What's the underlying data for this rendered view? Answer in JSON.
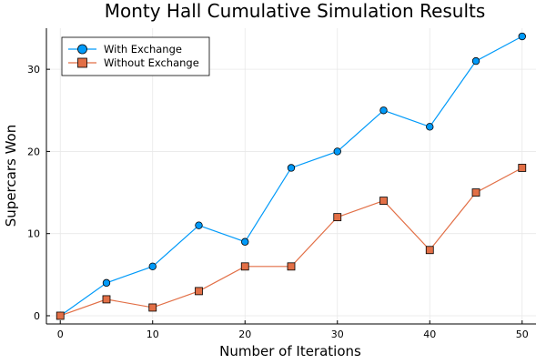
{
  "chart_data": {
    "type": "line",
    "title": "Monty Hall Cumulative Simulation Results",
    "xlabel": "Number of Iterations",
    "ylabel": "Supercars Won",
    "x": [
      0,
      5,
      10,
      15,
      20,
      25,
      30,
      35,
      40,
      45,
      50
    ],
    "xlim": [
      -1.5,
      51.5
    ],
    "ylim": [
      -1,
      35
    ],
    "xticks": [
      0,
      10,
      20,
      30,
      40,
      50
    ],
    "yticks": [
      0,
      10,
      20,
      30
    ],
    "grid": true,
    "legend_position": "top-left",
    "series": [
      {
        "name": "With Exchange",
        "marker": "circle",
        "color": "#009AF9",
        "values": [
          0,
          4,
          6,
          11,
          9,
          18,
          20,
          25,
          23,
          31,
          34
        ]
      },
      {
        "name": "Without Exchange",
        "marker": "square",
        "color": "#E26F46",
        "values": [
          0,
          2,
          1,
          3,
          6,
          6,
          12,
          14,
          8,
          15,
          18
        ]
      }
    ]
  }
}
